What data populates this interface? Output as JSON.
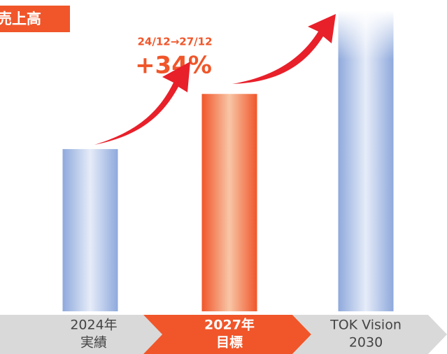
{
  "chart_data": {
    "type": "bar",
    "title": "売上高",
    "annotations": [
      "24/12→27/12",
      "+34%"
    ],
    "categories": [
      [
        "2024年",
        "実績"
      ],
      [
        "2027年",
        "目標"
      ],
      [
        "TOK Vision",
        "2030"
      ]
    ],
    "values": [
      100,
      134,
      185
    ],
    "colors": [
      "#8ea9dc",
      "#f0562a",
      "#8ea9dc"
    ],
    "highlight": 1
  }
}
